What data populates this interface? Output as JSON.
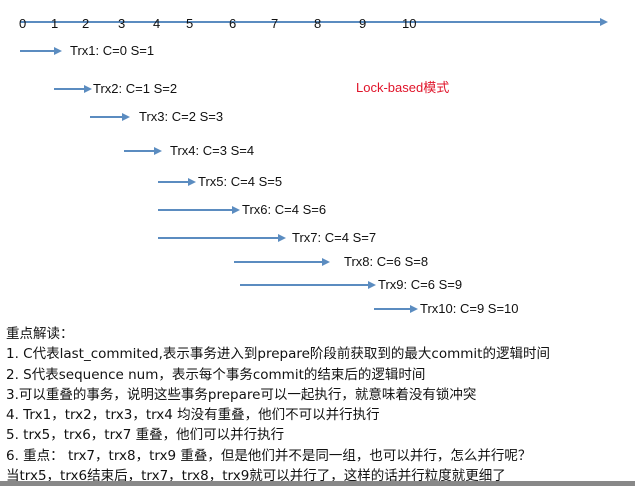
{
  "axis": {
    "ticks": [
      "0",
      "1",
      "2",
      "3",
      "4",
      "5",
      "6",
      "7",
      "8",
      "9",
      "10"
    ],
    "color": "#5b8cc0"
  },
  "mode_label": "Lock-based模式",
  "mode_color": "#e0142a",
  "transactions": [
    {
      "label": "Trx1: C=0 S=1",
      "C": 0,
      "S": 1
    },
    {
      "label": "Trx2: C=1 S=2",
      "C": 1,
      "S": 2
    },
    {
      "label": "Trx3: C=2 S=3",
      "C": 2,
      "S": 3
    },
    {
      "label": "Trx4: C=3 S=4",
      "C": 3,
      "S": 4
    },
    {
      "label": "Trx5: C=4 S=5",
      "C": 4,
      "S": 5
    },
    {
      "label": "Trx6: C=4 S=6",
      "C": 4,
      "S": 6
    },
    {
      "label": "Trx7: C=4 S=7",
      "C": 4,
      "S": 7
    },
    {
      "label": "Trx8: C=6 S=8",
      "C": 6,
      "S": 8
    },
    {
      "label": "Trx9: C=6 S=9",
      "C": 6,
      "S": 9
    },
    {
      "label": "Trx10: C=9 S=10",
      "C": 9,
      "S": 10
    }
  ],
  "notes": {
    "title": "重点解读：",
    "lines": [
      "1. C代表last_commited,表示事务进入到prepare阶段前获取到的最大commit的逻辑时间",
      "2. S代表sequence num，表示每个事务commit的结束后的逻辑时间",
      "3.可以重叠的事务，说明这些事务prepare可以一起执行，就意味着没有锁冲突",
      "4. Trx1，trx2，trx3，trx4 均没有重叠，他们不可以并行执行",
      "5. trx5，trx6，trx7  重叠，他们可以并行执行",
      "6.  重点： trx7，trx8，trx9 重叠，但是他们并不是同一组，也可以并行，怎么并行呢？",
      "  当trx5，trx6结束后，trx7，trx8，trx9就可以并行了，这样的话并行粒度就更细了"
    ]
  }
}
